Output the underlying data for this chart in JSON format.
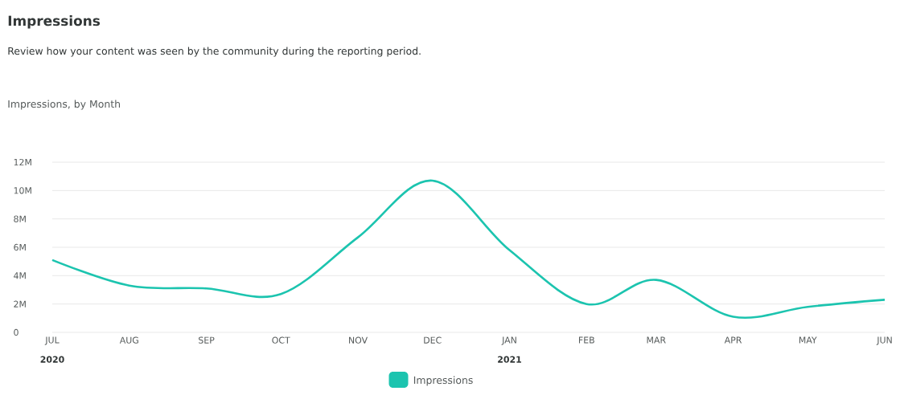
{
  "chart_data": {
    "type": "line",
    "title": "Impressions",
    "subtitle": "Review how your content was seen by the community during the reporting period.",
    "annotations": [
      "Impressions, by Month",
      "2020",
      "2021"
    ],
    "x": [
      "2020-07-01",
      "2020-08-01",
      "2020-09-01",
      "2020-10-01",
      "2020-11-01",
      "2020-12-01",
      "2021-01-01",
      "2021-02-01",
      "2021-03-01",
      "2021-04-01",
      "2021-05-01",
      "2021-06-01"
    ],
    "series": [
      {
        "name": "Impressions",
        "color": "#1cc4af",
        "values": [
          5.1,
          3.3,
          3.1,
          2.7,
          6.7,
          10.7,
          5.8,
          2.0,
          3.7,
          1.1,
          1.8,
          2.3
        ]
      }
    ],
    "xlim": [
      "2020-07-01",
      "2021-06-01"
    ],
    "xticks": [
      {
        "value": "2020-07-01",
        "label": "JUL"
      },
      {
        "value": "2020-08-01",
        "label": "AUG"
      },
      {
        "value": "2020-09-01",
        "label": "SEP"
      },
      {
        "value": "2020-10-01",
        "label": "OCT"
      },
      {
        "value": "2020-11-01",
        "label": "NOV"
      },
      {
        "value": "2020-12-01",
        "label": "DEC"
      },
      {
        "value": "2021-01-01",
        "label": "JAN"
      },
      {
        "value": "2021-02-01",
        "label": "FEB"
      },
      {
        "value": "2021-03-01",
        "label": "MAR"
      },
      {
        "value": "2021-04-01",
        "label": "APR"
      },
      {
        "value": "2021-05-01",
        "label": "MAY"
      },
      {
        "value": "2021-06-01",
        "label": "JUN"
      }
    ],
    "ylim": [
      0,
      12
    ],
    "yticks": [
      0,
      {
        "value": 2,
        "label": "2M"
      },
      {
        "value": 4,
        "label": "4M"
      },
      {
        "value": 6,
        "label": "6M"
      },
      {
        "value": 8,
        "label": "8M"
      },
      {
        "value": 10,
        "label": "10M"
      },
      {
        "value": 12,
        "label": "12M"
      }
    ],
    "grid": "y",
    "legend": "bottom",
    "marker": "none",
    "line_style": "solid"
  }
}
